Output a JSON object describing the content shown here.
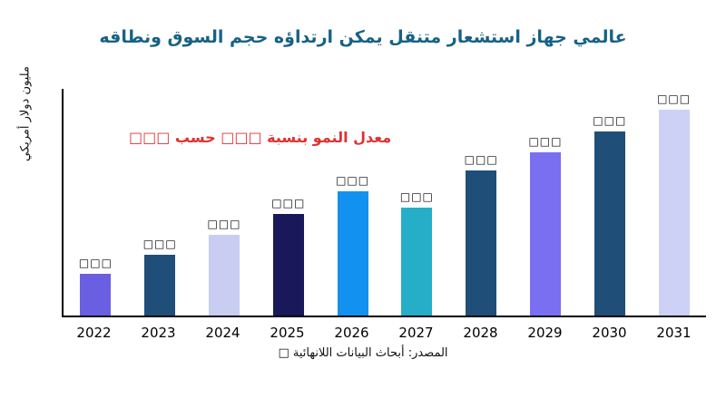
{
  "chart_data": {
    "type": "bar",
    "title": "عالمي جهاز استشعار متنقل يمكن ارتداؤه حجم السوق ونطاقه",
    "categories": [
      "2022",
      "2023",
      "2024",
      "2025",
      "2026",
      "2027",
      "2028",
      "2029",
      "2030",
      "2031"
    ],
    "values": [
      46,
      67,
      89,
      112,
      137,
      119,
      160,
      180,
      203,
      227
    ],
    "bar_labels": [
      "□□□",
      "□□□",
      "□□□",
      "□□□",
      "□□□",
      "□□□",
      "□□□",
      "□□□",
      "□□□",
      "□□□"
    ],
    "bar_colors": [
      "#6a5fe0",
      "#1f4e79",
      "#c9cdf2",
      "#18185a",
      "#1291f0",
      "#26aec9",
      "#1f4e79",
      "#7a6ff0",
      "#1f4e79",
      "#ccd1f5"
    ],
    "ylabel": "مليون دولار أمريكي",
    "ylim": [
      0,
      250
    ],
    "grid": false,
    "legend": "none",
    "annotation": "معدل النمو بنسبة □□□ حسب □□□",
    "annotation_color": "#e03131",
    "source": "المصدر: أبحاث البيانات اللانهائية □"
  }
}
